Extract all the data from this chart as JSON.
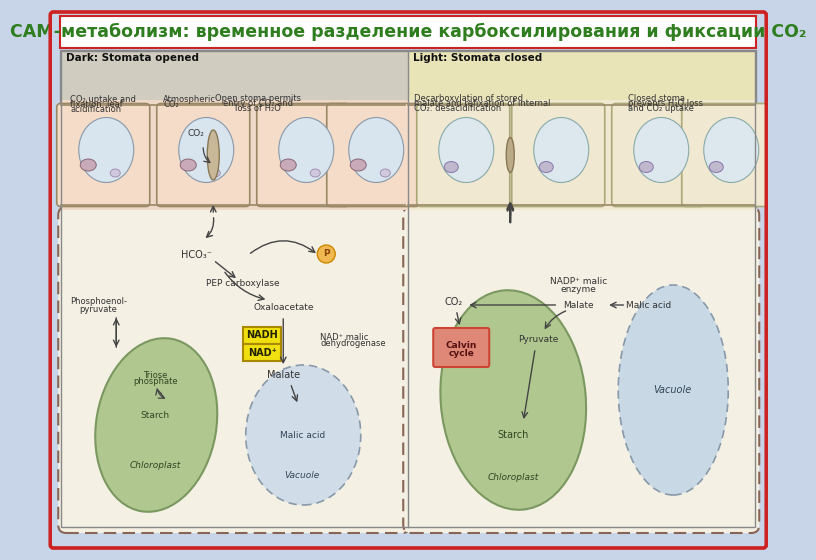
{
  "title": "САМ-метаболизм: временное разделение карбоксилирования и фиксации СО₂",
  "title_color": "#2e7d1e",
  "title_fontsize": 12.5,
  "fig_bg": "#c8d4e8",
  "outer_border_color": "#cc2222",
  "diagram_bg": "#ffffff",
  "left_panel_bg": "#ddd8c8",
  "right_panel_bg": "#eeead0",
  "left_header_bg": "#d0ccc0",
  "right_header_bg": "#e8e4b8",
  "left_cell_bg_top": "#f0d8c8",
  "right_cell_bg_top": "#f0e8d0",
  "lower_cell_bg": "#f4f0e4",
  "chloroplast_color": "#b0c890",
  "chloroplast_edge": "#7a9860",
  "vacuole_color_l": "#d0dce8",
  "vacuole_edge_l": "#8899aa",
  "vacuole_color_r": "#c8d8e4",
  "vacuole_edge_r": "#8899aa",
  "nadh_fill": "#f0e010",
  "nadh_edge": "#aa8800",
  "calvin_fill": "#e08878",
  "calvin_edge": "#cc4433",
  "p_circle_fill": "#f0b850",
  "p_circle_edge": "#cc8800",
  "arrow_color": "#444444",
  "text_color": "#333333",
  "header_text_color": "#111111",
  "cell_wall_color": "#998866"
}
